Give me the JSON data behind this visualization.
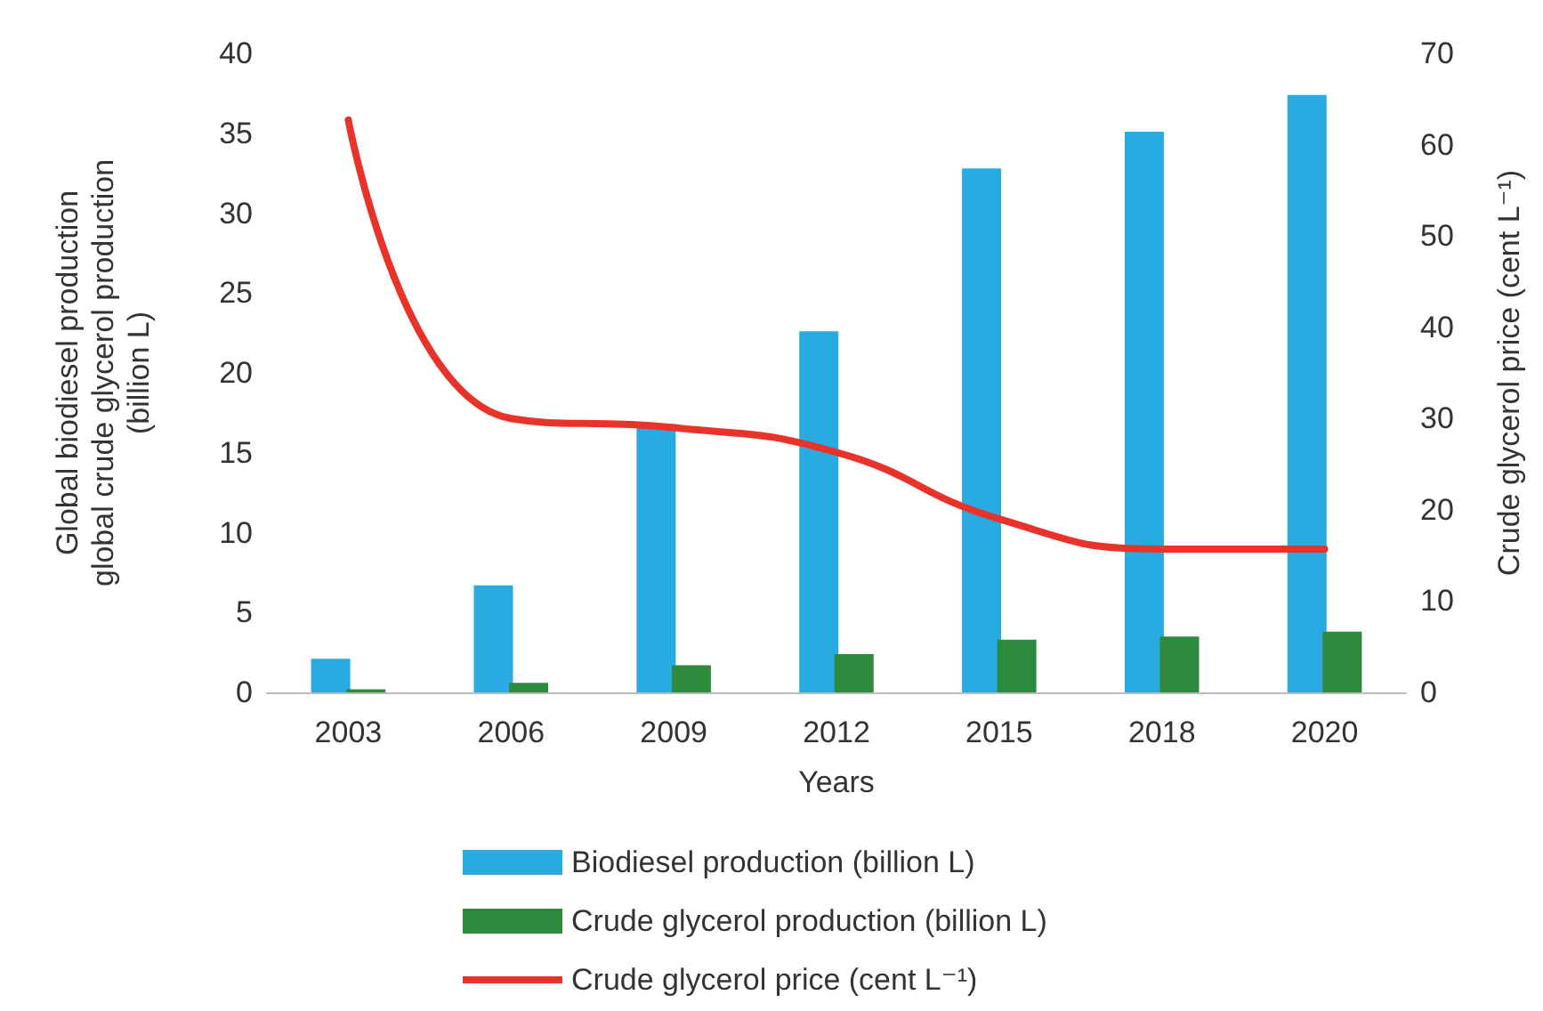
{
  "chart_data": {
    "type": "bar",
    "categories": [
      "2003",
      "2006",
      "2009",
      "2012",
      "2015",
      "2018",
      "2020"
    ],
    "xlabel": "Years",
    "ylabel": "Global biodiesel production\nglobal crude glycerol production\n(billion L)",
    "y2label": "Crude glycerol price (cent L⁻¹)",
    "series": [
      {
        "name": "Biodiesel production (billion L)",
        "color": "#29abe2",
        "values": [
          2.1,
          6.7,
          16.8,
          22.6,
          32.8,
          35.1,
          37.4
        ]
      },
      {
        "name": "Crude glycerol production (billion L)",
        "color": "#2e8b3e",
        "values": [
          0.2,
          0.6,
          1.7,
          2.4,
          3.3,
          3.5,
          3.8
        ]
      },
      {
        "name": "Crude glycerol price (cent L⁻¹)",
        "type": "line",
        "axis": "y2",
        "color": "#e8332a",
        "values": [
          62.7,
          30,
          29,
          26.3,
          19,
          15.7,
          15.7
        ]
      }
    ],
    "ylim": [
      0,
      40
    ],
    "yticks": [
      0,
      5,
      10,
      15,
      20,
      25,
      30,
      35,
      40
    ],
    "y2lim": [
      0,
      70
    ],
    "y2ticks": [
      0,
      10,
      20,
      30,
      40,
      50,
      60,
      70
    ],
    "grid": false,
    "legend": "bottom",
    "marker": "none",
    "line_style": "solid"
  }
}
